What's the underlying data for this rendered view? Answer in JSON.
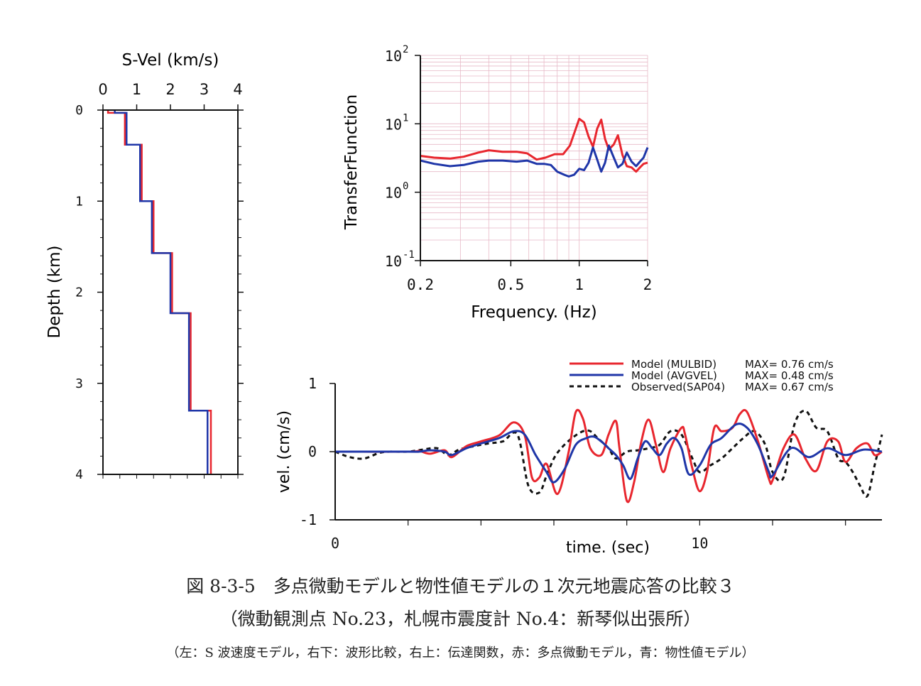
{
  "colors": {
    "red": "#e8262e",
    "blue": "#1f36a8",
    "black": "#111111",
    "grid": "#e7b9c7"
  },
  "captions": {
    "line1": "図 8-3-5　多点微動モデルと物性値モデルの１次元地震応答の比較３",
    "line2": "（微動観測点 No.23，札幌市震度計 No.4：新琴似出張所）",
    "line3": "（左：S 波速度モデル，右下：波形比較，右上：伝達関数，赤：多点微動モデル，青：物性値モデル）"
  },
  "chart_data": [
    {
      "id": "svel",
      "type": "line",
      "title": "",
      "xlabel": "S-Vel (km/s)",
      "ylabel": "Depth (km)",
      "xlim": [
        0,
        4
      ],
      "ylim": [
        4,
        0
      ],
      "xticks": [
        0,
        1,
        2,
        3,
        4
      ],
      "xtick_labels": [
        "0",
        "1",
        "2",
        "3",
        "4"
      ],
      "yticks": [
        0,
        1,
        2,
        3,
        4
      ],
      "ytick_labels": [
        "0",
        "1",
        "2",
        "3",
        "4"
      ],
      "series": [
        {
          "color": "red",
          "steps": [
            [
              0.0,
              0.15
            ],
            [
              0.03,
              0.65
            ],
            [
              0.38,
              1.15
            ],
            [
              1.0,
              1.5
            ],
            [
              1.57,
              2.05
            ],
            [
              2.23,
              2.6
            ],
            [
              3.3,
              3.2
            ],
            [
              4.0,
              3.2
            ]
          ]
        },
        {
          "color": "blue",
          "steps": [
            [
              0.0,
              0.35
            ],
            [
              0.03,
              0.7
            ],
            [
              0.38,
              1.1
            ],
            [
              1.0,
              1.45
            ],
            [
              1.57,
              2.0
            ],
            [
              2.23,
              2.55
            ],
            [
              3.3,
              3.1
            ],
            [
              4.0,
              3.1
            ]
          ]
        }
      ]
    },
    {
      "id": "transfer",
      "type": "line",
      "title": "",
      "xlabel": "Frequency. (Hz)",
      "ylabel": "TransferFunction",
      "xscale": "log",
      "yscale": "log",
      "xlim": [
        0.2,
        2
      ],
      "ylim": [
        0.1,
        100
      ],
      "xticks": [
        0.2,
        0.5,
        1,
        2
      ],
      "xtick_labels": [
        "0.2",
        "0.5",
        "1",
        "2"
      ],
      "yticks": [
        0.1,
        1,
        10,
        100
      ],
      "ytick_labels": [
        "10",
        "10",
        "10",
        "10"
      ],
      "ytick_exponents": [
        "-1",
        "0",
        "1",
        "2"
      ],
      "grid": true,
      "series": [
        {
          "color": "red",
          "x": [
            0.2,
            0.23,
            0.27,
            0.31,
            0.36,
            0.4,
            0.46,
            0.53,
            0.59,
            0.65,
            0.71,
            0.78,
            0.85,
            0.91,
            0.96,
            1.0,
            1.05,
            1.1,
            1.15,
            1.2,
            1.25,
            1.3,
            1.35,
            1.42,
            1.48,
            1.55,
            1.62,
            1.7,
            1.78,
            1.85,
            1.92,
            2.0
          ],
          "y": [
            3.4,
            3.2,
            3.1,
            3.3,
            3.8,
            4.1,
            3.9,
            3.9,
            3.7,
            3.0,
            3.2,
            3.6,
            3.6,
            4.8,
            8.0,
            11.8,
            10.5,
            6.5,
            4.6,
            8.5,
            11.5,
            6.0,
            4.2,
            5.0,
            6.8,
            3.5,
            2.4,
            2.3,
            2.0,
            2.3,
            2.6,
            2.7
          ]
        },
        {
          "color": "blue",
          "x": [
            0.2,
            0.23,
            0.27,
            0.31,
            0.36,
            0.4,
            0.46,
            0.53,
            0.59,
            0.65,
            0.7,
            0.75,
            0.8,
            0.86,
            0.9,
            0.95,
            1.0,
            1.05,
            1.1,
            1.15,
            1.2,
            1.25,
            1.3,
            1.35,
            1.42,
            1.48,
            1.55,
            1.62,
            1.7,
            1.78,
            1.85,
            1.92,
            2.0
          ],
          "y": [
            2.9,
            2.6,
            2.4,
            2.5,
            2.8,
            2.9,
            2.9,
            2.8,
            2.9,
            2.6,
            2.6,
            2.5,
            2.0,
            1.8,
            1.7,
            1.8,
            2.2,
            2.1,
            2.7,
            4.5,
            3.0,
            2.0,
            2.7,
            4.8,
            3.2,
            2.3,
            2.6,
            3.8,
            2.8,
            2.4,
            2.8,
            3.2,
            4.5
          ]
        }
      ]
    },
    {
      "id": "waveform",
      "type": "line",
      "title": "",
      "xlabel": "time. (sec)",
      "ylabel": "vel. (cm/s)",
      "xlim": [
        0,
        15
      ],
      "ylim": [
        -1,
        1
      ],
      "xticks": [
        0,
        10
      ],
      "xtick_labels": [
        "0",
        "10"
      ],
      "minor_xticks": [
        2,
        4,
        6,
        8,
        10,
        12,
        14
      ],
      "yticks": [
        -1,
        0,
        1
      ],
      "ytick_labels": [
        "-1",
        "0",
        "1"
      ],
      "legend_position": "top-right",
      "series": [
        {
          "name": "Model (MULBID)",
          "max_label": "MAX= 0.76 cm/s",
          "color": "red",
          "style": "solid",
          "x": [
            0,
            2,
            2.3,
            2.6,
            3.0,
            3.2,
            3.6,
            4.0,
            4.5,
            4.9,
            5.2,
            5.4,
            5.6,
            5.8,
            6.1,
            6.4,
            6.6,
            6.8,
            7.0,
            7.3,
            7.5,
            7.7,
            7.8,
            8.0,
            8.2,
            8.4,
            8.6,
            8.8,
            9.0,
            9.2,
            9.5,
            9.6,
            9.8,
            10.0,
            10.2,
            10.4,
            10.6,
            10.9,
            11.1,
            11.3,
            11.6,
            11.9,
            12.0,
            12.3,
            12.6,
            12.9,
            13.2,
            13.5,
            13.8,
            14.0,
            14.3,
            14.6,
            14.8,
            15.0
          ],
          "y": [
            0,
            0,
            0.01,
            -0.03,
            0.02,
            -0.08,
            0.08,
            0.15,
            0.24,
            0.43,
            0.24,
            -0.38,
            -0.38,
            -0.18,
            -0.62,
            -0.02,
            0.58,
            0.48,
            0.05,
            -0.05,
            0.25,
            0.45,
            0.05,
            -0.72,
            -0.45,
            0.15,
            0.47,
            0.1,
            -0.3,
            0.05,
            0.35,
            0.25,
            -0.25,
            -0.58,
            -0.3,
            0.35,
            0.3,
            0.35,
            0.55,
            0.58,
            0.15,
            -0.4,
            -0.42,
            0.05,
            0.25,
            -0.1,
            -0.28,
            0.15,
            0.15,
            -0.15,
            0.05,
            0.12,
            -0.05,
            0.0
          ]
        },
        {
          "name": "Model (AVGVEL)",
          "max_label": "MAX= 0.48 cm/s",
          "color": "blue",
          "style": "solid",
          "x": [
            0,
            2,
            2.3,
            2.6,
            3.0,
            3.2,
            3.6,
            4.0,
            4.5,
            4.9,
            5.2,
            5.5,
            5.8,
            6.0,
            6.3,
            6.6,
            6.9,
            7.1,
            7.3,
            7.5,
            7.7,
            7.9,
            8.1,
            8.3,
            8.5,
            8.7,
            8.9,
            9.1,
            9.3,
            9.5,
            9.7,
            10.0,
            10.3,
            10.6,
            11.0,
            11.3,
            11.6,
            11.9,
            12.0,
            12.5,
            13.0,
            13.5,
            14.0,
            14.5,
            15.0
          ],
          "y": [
            0,
            0,
            0.0,
            0.02,
            0.0,
            -0.05,
            0.05,
            0.12,
            0.2,
            0.3,
            0.25,
            -0.05,
            -0.3,
            -0.45,
            -0.25,
            0.1,
            0.2,
            0.22,
            0.15,
            0.05,
            -0.05,
            -0.2,
            -0.4,
            -0.1,
            0.15,
            0.05,
            -0.05,
            0.12,
            0.2,
            0.05,
            -0.33,
            -0.2,
            0.1,
            0.2,
            0.4,
            0.35,
            0.1,
            -0.3,
            -0.35,
            0.05,
            -0.08,
            0.05,
            -0.05,
            0.03,
            0.0
          ]
        },
        {
          "name": "Observed(SAP04)",
          "max_label": "MAX= 0.67 cm/s",
          "color": "black",
          "style": "dashed",
          "x": [
            0,
            0.4,
            0.8,
            1.2,
            1.5,
            2.0,
            2.4,
            2.8,
            3.1,
            3.4,
            3.8,
            4.2,
            4.6,
            5.0,
            5.3,
            5.6,
            5.8,
            6.0,
            6.2,
            6.5,
            6.8,
            7.0,
            7.2,
            7.5,
            7.7,
            8.0,
            8.3,
            8.6,
            8.9,
            9.2,
            9.5,
            9.8,
            10.0,
            10.3,
            10.6,
            10.9,
            11.2,
            11.5,
            11.8,
            12.0,
            12.3,
            12.6,
            12.9,
            13.2,
            13.5,
            13.8,
            14.0,
            14.2,
            14.4,
            14.6,
            14.8,
            15.0
          ],
          "y": [
            0,
            -0.08,
            -0.1,
            -0.02,
            0.0,
            0.0,
            0.03,
            0.05,
            -0.05,
            0.03,
            0.08,
            0.12,
            0.15,
            0.25,
            -0.5,
            -0.6,
            -0.35,
            -0.1,
            0.05,
            0.2,
            0.3,
            0.3,
            0.2,
            0.05,
            -0.1,
            0.0,
            0.02,
            0.05,
            0.1,
            0.3,
            0.25,
            -0.1,
            -0.3,
            -0.2,
            -0.1,
            0.05,
            0.2,
            0.3,
            0.1,
            -0.3,
            -0.38,
            0.4,
            0.6,
            0.35,
            0.3,
            -0.1,
            -0.15,
            -0.3,
            -0.5,
            -0.65,
            -0.2,
            0.25
          ]
        }
      ]
    }
  ]
}
